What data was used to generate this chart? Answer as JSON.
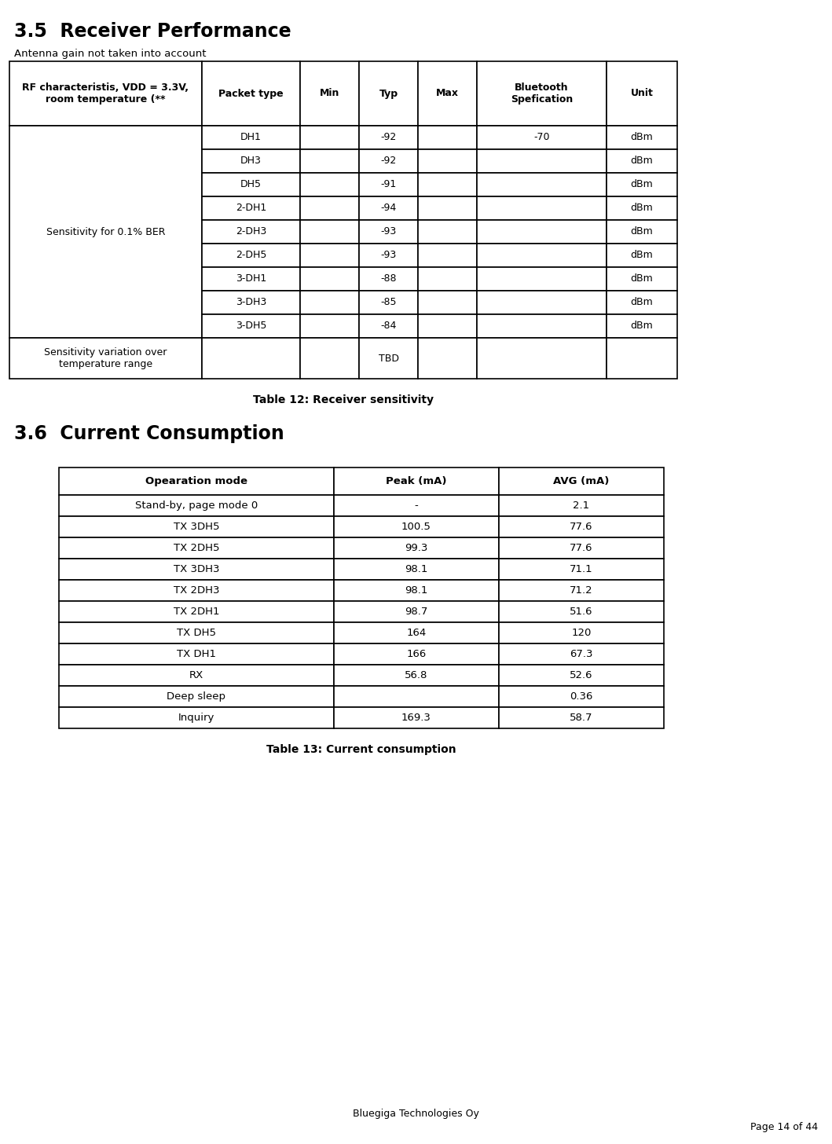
{
  "section1_title": "3.5  Receiver Performance",
  "section1_subtitle": "Antenna gain not taken into account",
  "table1_caption": "Table 12: Receiver sensitivity",
  "table1_header_col0": "RF characteristis, VDD = 3.3V,\nroom temperature (**",
  "table1_header_cols": [
    "Packet type",
    "Min",
    "Typ",
    "Max",
    "Bluetooth\nSpefication",
    "Unit"
  ],
  "table1_rows": [
    [
      "Sensitivity for 0.1% BER",
      "DH1",
      "",
      "-92",
      "",
      "-70",
      "dBm"
    ],
    [
      "",
      "DH3",
      "",
      "-92",
      "",
      "",
      "dBm"
    ],
    [
      "",
      "DH5",
      "",
      "-91",
      "",
      "",
      "dBm"
    ],
    [
      "",
      "2-DH1",
      "",
      "-94",
      "",
      "",
      "dBm"
    ],
    [
      "",
      "2-DH3",
      "",
      "-93",
      "",
      "",
      "dBm"
    ],
    [
      "",
      "2-DH5",
      "",
      "-93",
      "",
      "",
      "dBm"
    ],
    [
      "",
      "3-DH1",
      "",
      "-88",
      "",
      "",
      "dBm"
    ],
    [
      "",
      "3-DH3",
      "",
      "-85",
      "",
      "",
      "dBm"
    ],
    [
      "",
      "3-DH5",
      "",
      "-84",
      "",
      "",
      "dBm"
    ]
  ],
  "table1_last_row_label": "Sensitivity variation over\ntemperature range",
  "table1_last_row_tbd": "TBD",
  "section2_title": "3.6  Current Consumption",
  "table2_caption": "Table 13: Current consumption",
  "table2_headers": [
    "Opearation mode",
    "Peak (mA)",
    "AVG (mA)"
  ],
  "table2_rows": [
    [
      "Stand-by, page mode 0",
      "-",
      "2.1"
    ],
    [
      "TX 3DH5",
      "100.5",
      "77.6"
    ],
    [
      "TX 2DH5",
      "99.3",
      "77.6"
    ],
    [
      "TX 3DH3",
      "98.1",
      "71.1"
    ],
    [
      "TX 2DH3",
      "98.1",
      "71.2"
    ],
    [
      "TX 2DH1",
      "98.7",
      "51.6"
    ],
    [
      "TX DH5",
      "164",
      "120"
    ],
    [
      "TX DH1",
      "166",
      "67.3"
    ],
    [
      "RX",
      "56.8",
      "52.6"
    ],
    [
      "Deep sleep",
      "",
      "0.36"
    ],
    [
      "Inquiry",
      "169.3",
      "58.7"
    ]
  ],
  "footer_center": "Bluegiga Technologies Oy",
  "footer_right": "Page 14 of 44",
  "bg_color": "#ffffff",
  "text_color": "#000000"
}
